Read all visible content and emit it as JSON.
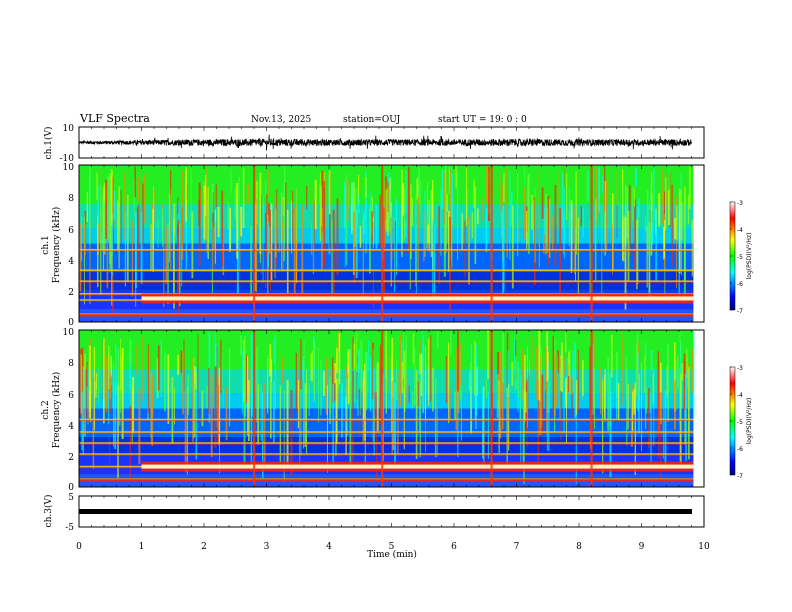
{
  "header": {
    "title": "VLF Spectra",
    "date": "Nov.13, 2025",
    "station": "station=OUJ",
    "start": "start  UT =   19: 0  : 0"
  },
  "colorbar": {
    "label": "log(PSD)(V²/Hz)",
    "ticks": [
      "-3",
      "-4",
      "-5",
      "-6",
      "-7"
    ],
    "stops": [
      "#ffffff",
      "#ff0000",
      "#ffff00",
      "#00ff00",
      "#00ffff",
      "#0000ff",
      "#000080"
    ]
  },
  "chart_data": [
    {
      "type": "line",
      "name": "ch1-waveform",
      "ylabel": "ch.1(V)",
      "ylim": [
        -10,
        10
      ],
      "yticklabels": [
        "10",
        "-10"
      ],
      "xlim": [
        0,
        10
      ],
      "note": "Waveform amplitude envelope (approx.)",
      "x": [
        0,
        1,
        2,
        3,
        4,
        5,
        6,
        7,
        8,
        9,
        9.8
      ],
      "envelope": [
        1.5,
        2.5,
        3.5,
        4.0,
        3.5,
        3.5,
        3.5,
        4.0,
        3.5,
        3.5,
        3.5
      ]
    },
    {
      "type": "heatmap",
      "name": "ch1-spectrogram",
      "ylabel": "ch.1",
      "ylabel2": "Frequency (kHz)",
      "ylim": [
        0,
        10
      ],
      "yticklabels": [
        "0",
        "2",
        "4",
        "6",
        "8",
        "10"
      ],
      "xlim": [
        0,
        9.83
      ],
      "color_range": [
        -7,
        -3
      ],
      "bands_kHz": [
        0.5,
        1.4,
        1.8,
        2.6,
        3.3,
        4.6
      ],
      "strong_band_kHz": 1.5,
      "strong_band_start_min": 1.0,
      "impulses_min": [
        2.8,
        4.85,
        6.6,
        8.2
      ]
    },
    {
      "type": "heatmap",
      "name": "ch2-spectrogram",
      "ylabel": "ch.2",
      "ylabel2": "Frequency (kHz)",
      "ylim": [
        0,
        10
      ],
      "yticklabels": [
        "0",
        "2",
        "4",
        "6",
        "8",
        "10"
      ],
      "xlim": [
        0,
        9.83
      ],
      "color_range": [
        -7,
        -3
      ],
      "bands_kHz": [
        0.5,
        1.3,
        2.1,
        2.8,
        3.5,
        4.3
      ],
      "strong_band_kHz": 1.3,
      "strong_band_start_min": 1.0,
      "impulses_min": [
        2.8,
        4.85,
        6.6,
        8.2
      ]
    },
    {
      "type": "line",
      "name": "ch3-waveform",
      "ylabel": "ch.3(V)",
      "ylim": [
        -5,
        5
      ],
      "yticklabels": [
        "5",
        "-5"
      ],
      "xlim": [
        0,
        10
      ],
      "x": [
        0,
        9.8
      ],
      "y": [
        -1,
        -1
      ]
    }
  ],
  "xaxis": {
    "label": "Time (min)",
    "ticklabels": [
      "0",
      "1",
      "2",
      "3",
      "4",
      "5",
      "6",
      "7",
      "8",
      "9",
      "10"
    ],
    "range": [
      0,
      10
    ]
  }
}
